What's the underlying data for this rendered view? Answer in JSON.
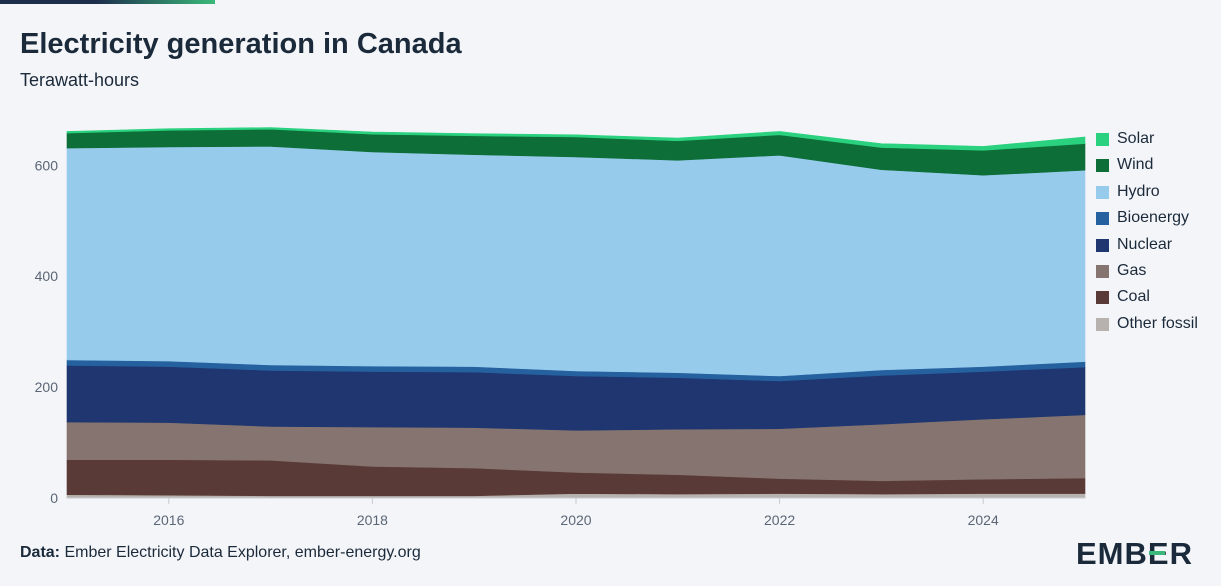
{
  "header": {
    "title": "Electricity generation in Canada",
    "subtitle": "Terawatt-hours"
  },
  "footer": {
    "source_label": "Data:",
    "source_text": "Ember Electricity Data Explorer, ember-energy.org",
    "brand": "EMBER"
  },
  "chart_data": {
    "type": "area",
    "stacked": true,
    "x": [
      2015,
      2016,
      2017,
      2018,
      2019,
      2020,
      2021,
      2022,
      2023,
      2024,
      2025
    ],
    "xticks": [
      2016,
      2018,
      2020,
      2022,
      2024
    ],
    "xlim": [
      2015,
      2025
    ],
    "ylim": [
      0,
      660
    ],
    "yticks": [
      0,
      200,
      400,
      600
    ],
    "ylabel": "",
    "xlabel": "",
    "grid": false,
    "legend_position": "right",
    "series": [
      {
        "name": "Other fossil",
        "color": "#b7b2ad",
        "values": [
          6,
          5,
          4,
          4,
          4,
          8,
          7,
          8,
          7,
          8,
          8
        ]
      },
      {
        "name": "Coal",
        "color": "#5a3a36",
        "values": [
          63,
          64,
          64,
          53,
          50,
          38,
          35,
          27,
          24,
          26,
          28
        ]
      },
      {
        "name": "Gas",
        "color": "#857470",
        "values": [
          68,
          67,
          61,
          71,
          73,
          76,
          82,
          90,
          102,
          108,
          114
        ]
      },
      {
        "name": "Nuclear",
        "color": "#1f3670",
        "values": [
          102,
          101,
          101,
          100,
          100,
          98,
          93,
          86,
          88,
          86,
          86
        ]
      },
      {
        "name": "Bioenergy",
        "color": "#25619f",
        "values": [
          10,
          10,
          10,
          10,
          10,
          9,
          9,
          9,
          10,
          9,
          10
        ]
      },
      {
        "name": "Hydro",
        "color": "#97cbec",
        "values": [
          382,
          386,
          394,
          386,
          382,
          386,
          383,
          398,
          361,
          345,
          345
        ]
      },
      {
        "name": "Wind",
        "color": "#0d6e37",
        "values": [
          27,
          30,
          31,
          32,
          34,
          36,
          35,
          37,
          40,
          45,
          48
        ]
      },
      {
        "name": "Solar",
        "color": "#2ad17e",
        "values": [
          3,
          3,
          3,
          4,
          4,
          4,
          5,
          6,
          7,
          7,
          12
        ]
      }
    ]
  }
}
